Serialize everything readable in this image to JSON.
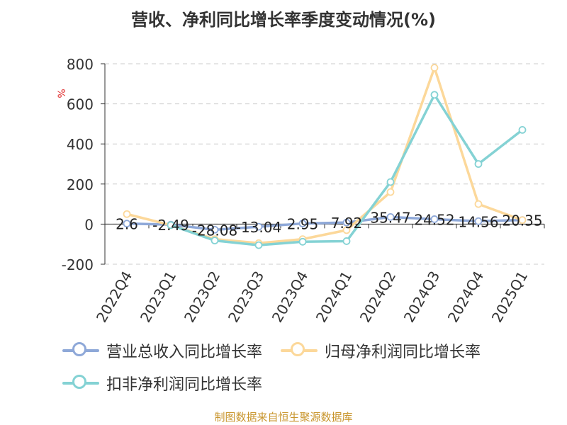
{
  "title": "营收、净利同比增长率季度变动情况(%)",
  "source": "制图数据来自恒生聚源数据库",
  "chart_data": {
    "type": "line",
    "title": "营收、净利同比增长率季度变动情况(%)",
    "ylabel": "%",
    "ylim": [
      -200,
      800
    ],
    "yticks": [
      -200,
      0,
      200,
      400,
      600,
      800
    ],
    "grid": true,
    "legend_position": "bottom",
    "categories": [
      "2022Q4",
      "2023Q1",
      "2023Q2",
      "2023Q3",
      "2023Q4",
      "2024Q1",
      "2024Q2",
      "2024Q3",
      "2024Q4",
      "2025Q1"
    ],
    "series": [
      {
        "name": "营业总收入同比增长率",
        "color": "#8ea8d8",
        "values": [
          2.6,
          -2.49,
          -28.08,
          -13.04,
          2.95,
          7.92,
          35.47,
          24.52,
          14.56,
          20.35
        ],
        "labels": [
          "2.6",
          "-2.49",
          "-28.08",
          "-13.04",
          "2.95",
          "7.92",
          "35.47",
          "24.52",
          "14.56",
          "20.35"
        ]
      },
      {
        "name": "归母净利润同比增长率",
        "color": "#fcd89a",
        "values": [
          50,
          -5,
          -75,
          -95,
          -75,
          -30,
          160,
          780,
          100,
          20
        ]
      },
      {
        "name": "扣非净利润同比增长率",
        "color": "#84d2d4",
        "values": [
          null,
          -5,
          -82,
          -105,
          -88,
          -85,
          210,
          645,
          300,
          470
        ]
      }
    ]
  }
}
